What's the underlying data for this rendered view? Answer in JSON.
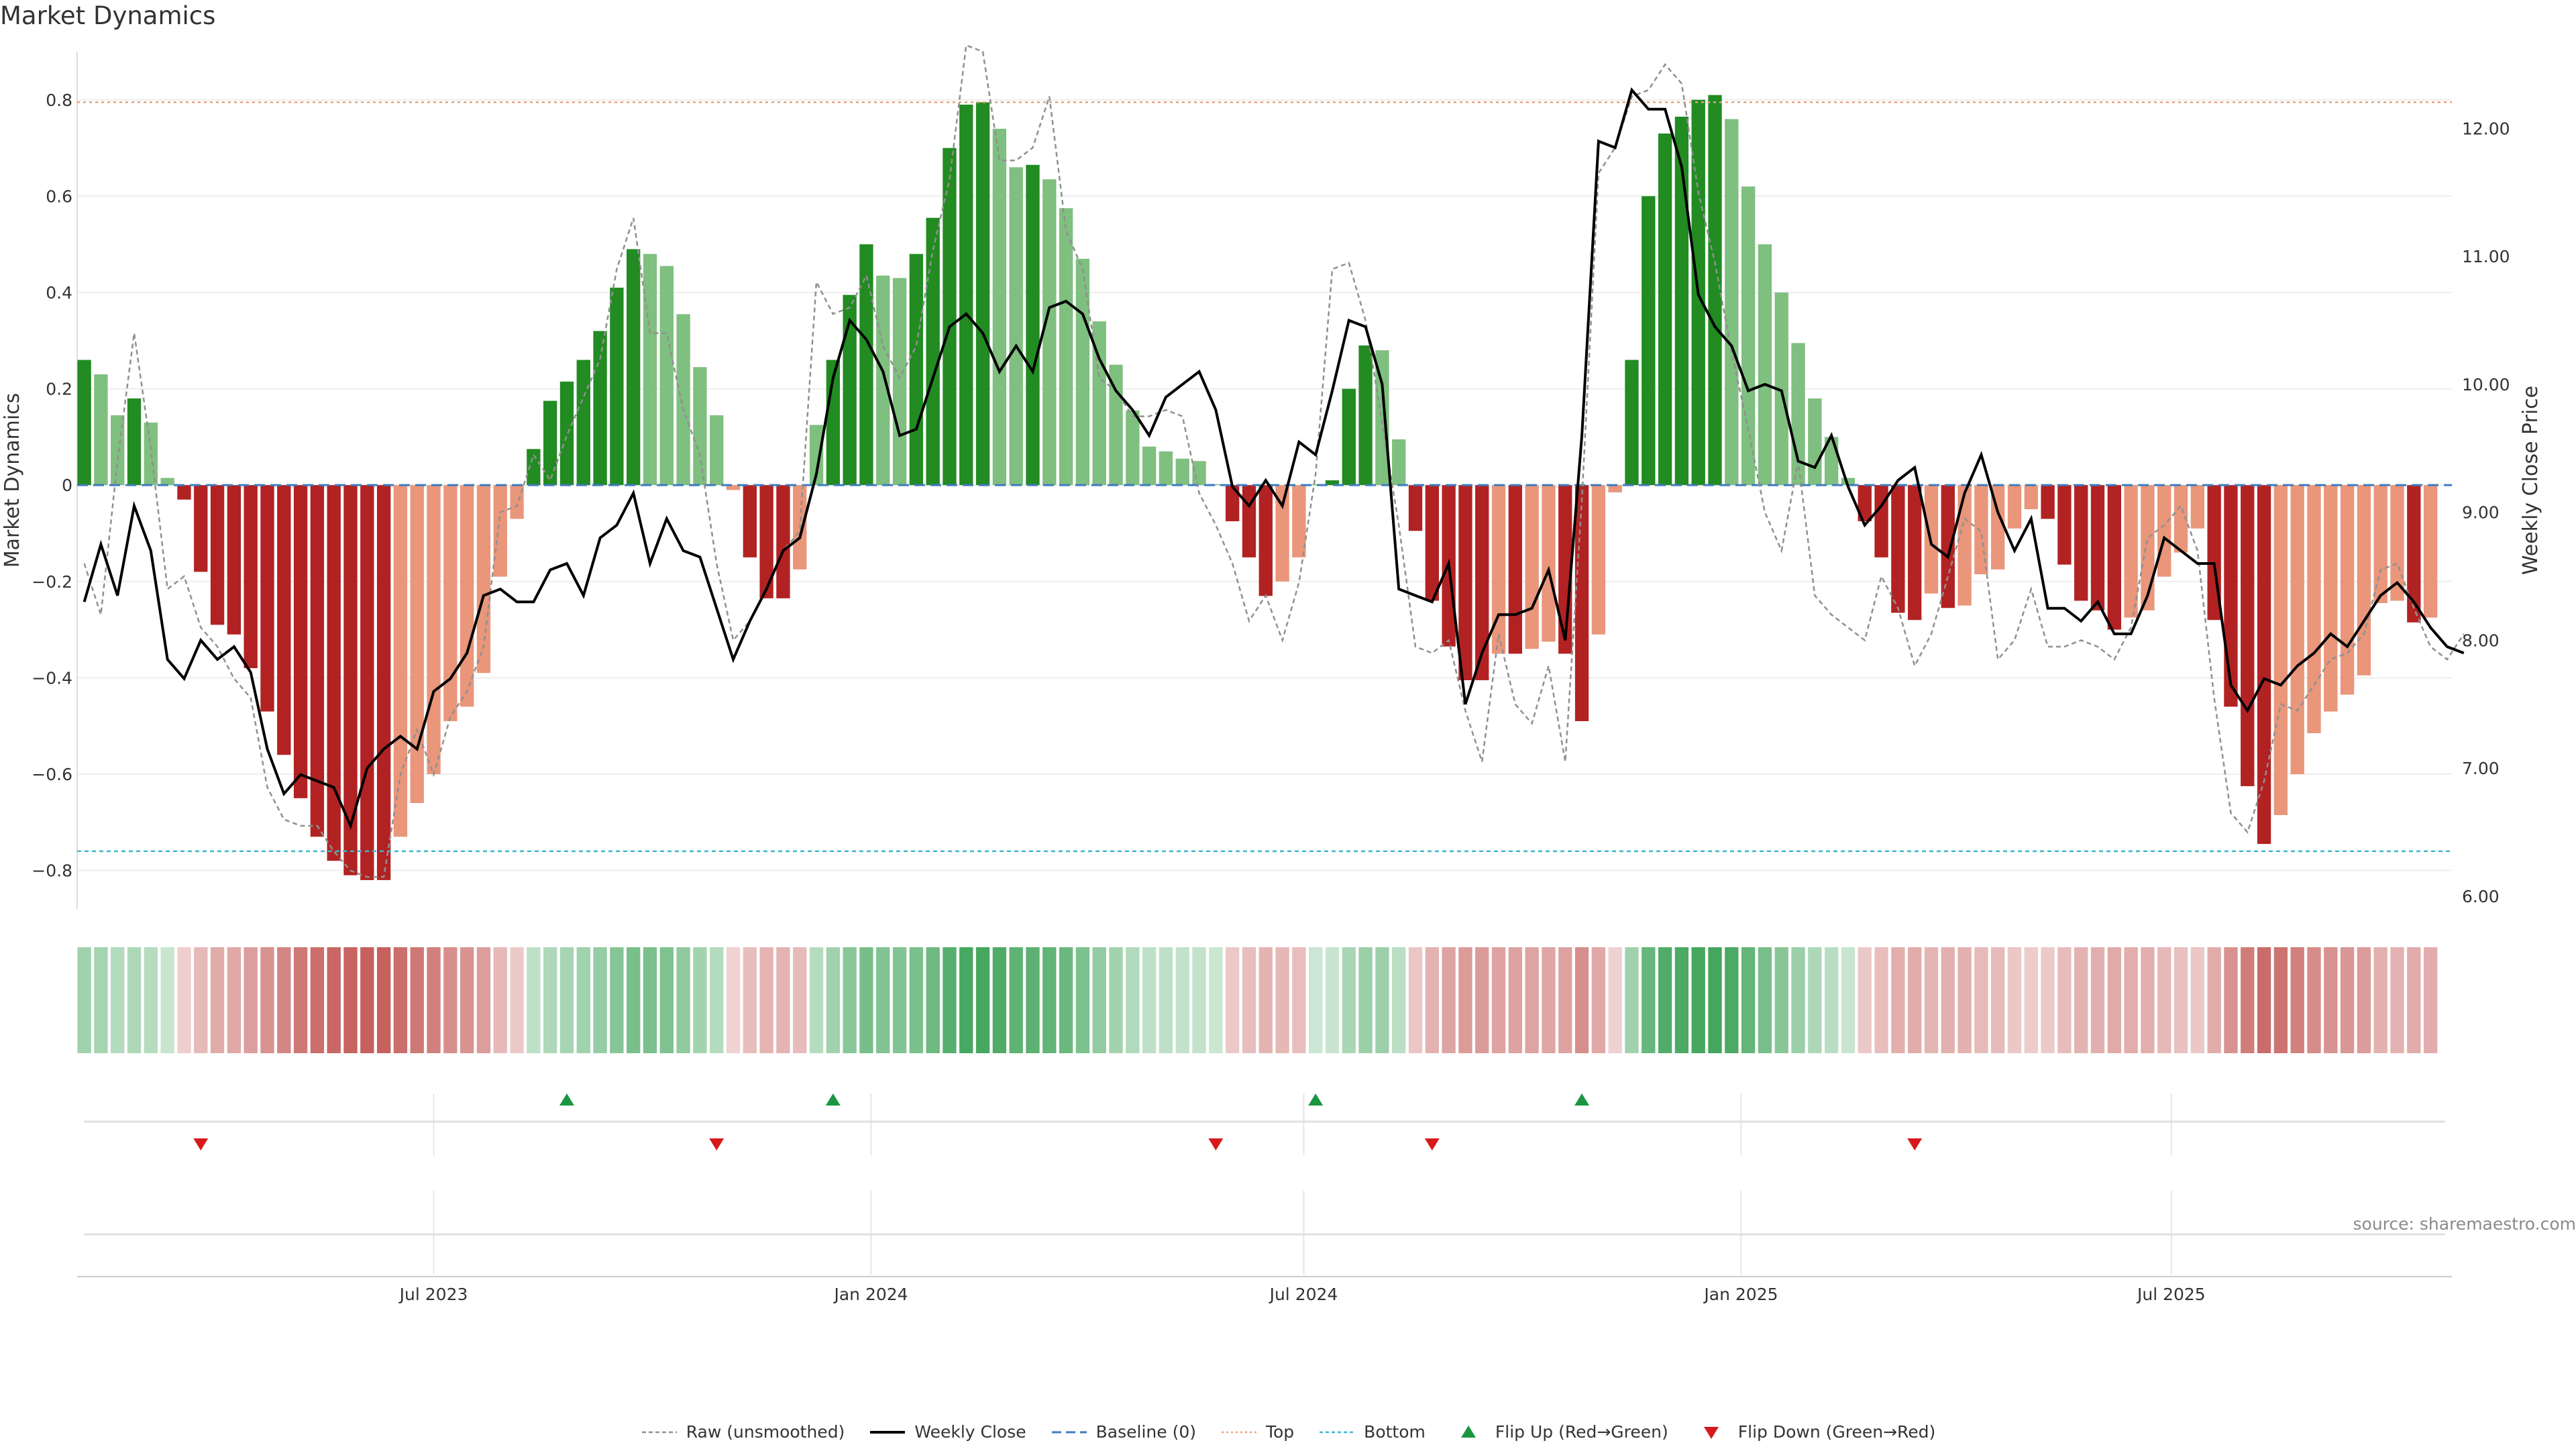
{
  "title": "Market Dynamics",
  "source": "source: sharemaestro.com",
  "chart_data": {
    "type": "bar",
    "title": "Market Dynamics",
    "ylabel": "Market Dynamics",
    "y2label": "Weekly Close Price",
    "ylim": [
      -0.88,
      0.9
    ],
    "y2lim": [
      5.9,
      12.6
    ],
    "yticks": [
      -0.8,
      -0.6,
      -0.4,
      -0.2,
      0,
      0.2,
      0.4,
      0.6,
      0.8
    ],
    "yticklabels": [
      "−0.8",
      "−0.6",
      "−0.4",
      "−0.2",
      "0",
      "0.2",
      "0.4",
      "0.6",
      "0.8"
    ],
    "y2ticks": [
      6,
      7,
      8,
      9,
      10,
      11,
      12
    ],
    "y2ticklabels": [
      "6.00",
      "7.00",
      "8.00",
      "9.00",
      "10.00",
      "11.00",
      "12.00"
    ],
    "xlim": [
      "2023-02-01",
      "2025-10-27"
    ],
    "xticks": [
      "2023-07-01",
      "2024-01-01",
      "2024-07-01",
      "2025-01-01",
      "2025-07-01"
    ],
    "xticklabels": [
      "Jul 2023",
      "Jan 2024",
      "Jul 2024",
      "Jan 2025",
      "Jul 2025"
    ],
    "start_date": "2023-02-04",
    "top_level": 0.795,
    "bottom_level": -0.76,
    "baseline": 0,
    "bars": [
      0.26,
      0.23,
      0.145,
      0.18,
      0.13,
      0.015,
      -0.03,
      -0.18,
      -0.29,
      -0.31,
      -0.38,
      -0.47,
      -0.56,
      -0.65,
      -0.73,
      -0.78,
      -0.81,
      -0.82,
      -0.82,
      -0.73,
      -0.66,
      -0.6,
      -0.49,
      -0.46,
      -0.39,
      -0.19,
      -0.07,
      0.075,
      0.175,
      0.215,
      0.26,
      0.32,
      0.41,
      0.49,
      0.48,
      0.455,
      0.355,
      0.245,
      0.145,
      -0.01,
      -0.15,
      -0.235,
      -0.235,
      -0.175,
      0.125,
      0.26,
      0.395,
      0.5,
      0.435,
      0.43,
      0.48,
      0.555,
      0.7,
      0.79,
      0.795,
      0.74,
      0.66,
      0.665,
      0.635,
      0.575,
      0.47,
      0.34,
      0.25,
      0.155,
      0.08,
      0.07,
      0.055,
      0.05,
      0.002,
      -0.075,
      -0.15,
      -0.23,
      -0.2,
      -0.15,
      0.002,
      0.01,
      0.2,
      0.29,
      0.28,
      0.095,
      -0.095,
      -0.24,
      -0.335,
      -0.405,
      -0.405,
      -0.35,
      -0.35,
      -0.34,
      -0.325,
      -0.35,
      -0.49,
      -0.31,
      -0.015,
      0.26,
      0.6,
      0.73,
      0.765,
      0.8,
      0.81,
      0.76,
      0.62,
      0.5,
      0.4,
      0.295,
      0.18,
      0.1,
      0.015,
      -0.075,
      -0.15,
      -0.265,
      -0.28,
      -0.225,
      -0.255,
      -0.25,
      -0.185,
      -0.175,
      -0.09,
      -0.05,
      -0.07,
      -0.165,
      -0.24,
      -0.26,
      -0.3,
      -0.275,
      -0.26,
      -0.19,
      -0.14,
      -0.09,
      -0.28,
      -0.46,
      -0.625,
      -0.745,
      -0.685,
      -0.6,
      -0.515,
      -0.47,
      -0.435,
      -0.395,
      -0.245,
      -0.24,
      -0.285,
      -0.275
    ],
    "weekly_close": [
      8.3,
      8.75,
      8.35,
      9.05,
      8.7,
      7.85,
      7.7,
      8.0,
      7.85,
      7.95,
      7.75,
      7.15,
      6.8,
      6.95,
      6.9,
      6.85,
      6.55,
      7.0,
      7.15,
      7.25,
      7.15,
      7.6,
      7.7,
      7.9,
      8.35,
      8.4,
      8.3,
      8.3,
      8.55,
      8.6,
      8.35,
      8.8,
      8.9,
      9.15,
      8.6,
      8.95,
      8.7,
      8.65,
      8.25,
      7.85,
      8.15,
      8.4,
      8.7,
      8.8,
      9.3,
      10.05,
      10.5,
      10.35,
      10.1,
      9.6,
      9.65,
      10.05,
      10.45,
      10.55,
      10.4,
      10.1,
      10.3,
      10.1,
      10.6,
      10.65,
      10.55,
      10.2,
      9.95,
      9.8,
      9.6,
      9.9,
      10.0,
      10.1,
      9.8,
      9.2,
      9.05,
      9.25,
      9.05,
      9.55,
      9.45,
      9.95,
      10.5,
      10.45,
      10.0,
      8.4,
      8.35,
      8.3,
      8.6,
      7.5,
      7.9,
      8.2,
      8.2,
      8.25,
      8.55,
      8.0,
      9.6,
      11.9,
      11.85,
      12.3,
      12.15,
      12.15,
      11.7,
      10.7,
      10.45,
      10.3,
      9.95,
      10.0,
      9.95,
      9.4,
      9.35,
      9.6,
      9.2,
      8.9,
      9.05,
      9.25,
      9.35,
      8.75,
      8.65,
      9.15,
      9.45,
      9.0,
      8.7,
      8.95,
      8.25,
      8.25,
      8.15,
      8.3,
      8.05,
      8.05,
      8.35,
      8.8,
      8.7,
      8.6,
      8.6,
      7.65,
      7.45,
      7.7,
      7.65,
      7.8,
      7.9,
      8.05,
      7.95,
      8.15,
      8.35,
      8.45,
      8.3,
      8.1,
      7.95,
      7.9
    ],
    "raw": [
      8.6,
      8.2,
      9.4,
      10.4,
      9.5,
      8.4,
      8.5,
      8.1,
      7.95,
      7.7,
      7.55,
      6.85,
      6.6,
      6.55,
      6.55,
      6.35,
      6.2,
      6.15,
      6.15,
      6.95,
      7.3,
      6.95,
      7.4,
      7.6,
      7.95,
      9.0,
      9.05,
      9.45,
      9.25,
      9.6,
      9.9,
      10.2,
      10.9,
      11.3,
      10.4,
      10.4,
      9.8,
      9.45,
      8.6,
      8.0,
      8.15,
      8.4,
      8.7,
      8.85,
      10.8,
      10.55,
      10.6,
      10.85,
      10.3,
      10.05,
      10.3,
      11.05,
      11.6,
      12.65,
      12.6,
      11.75,
      11.75,
      11.85,
      12.25,
      11.2,
      10.9,
      10.05,
      9.95,
      9.75,
      9.75,
      9.8,
      9.75,
      9.15,
      8.9,
      8.6,
      8.15,
      8.35,
      8.0,
      8.45,
      9.3,
      10.9,
      10.95,
      10.5,
      9.7,
      8.9,
      7.95,
      7.9,
      8.0,
      7.45,
      7.05,
      8.05,
      7.5,
      7.35,
      7.8,
      7.05,
      9.1,
      11.65,
      11.85,
      12.25,
      12.3,
      12.5,
      12.35,
      11.5,
      10.95,
      10.25,
      9.65,
      9.0,
      8.7,
      9.4,
      8.35,
      8.2,
      8.1,
      8.0,
      8.5,
      8.25,
      7.8,
      8.05,
      8.5,
      8.95,
      8.85,
      7.85,
      8.0,
      8.4,
      7.95,
      7.95,
      8.0,
      7.95,
      7.85,
      8.1,
      8.8,
      8.9,
      9.05,
      8.7,
      7.55,
      6.65,
      6.5,
      6.9,
      7.5,
      7.45,
      7.65,
      7.85,
      7.9,
      8.05,
      8.55,
      8.6,
      8.25,
      7.95,
      7.85,
      8.05
    ],
    "strip_intensity_scale": [
      0,
      1
    ],
    "flip_up_dates": [
      "2023-08-26",
      "2023-12-16",
      "2024-07-06",
      "2024-10-26"
    ],
    "flip_down_dates": [
      "2023-03-25",
      "2023-10-28",
      "2024-05-25",
      "2024-08-24",
      "2025-03-15"
    ],
    "legend": [
      {
        "label": "Raw (unsmoothed)",
        "kind": "raw",
        "color": "#909090"
      },
      {
        "label": "Weekly Close",
        "kind": "close",
        "color": "#000000"
      },
      {
        "label": "Baseline (0)",
        "kind": "baseline",
        "color": "#3f7bbf"
      },
      {
        "label": "Top",
        "kind": "top",
        "color": "#e8a27a"
      },
      {
        "label": "Bottom",
        "kind": "bottom",
        "color": "#3fb6cf"
      },
      {
        "label": "Flip Up (Red→Green)",
        "kind": "flipup",
        "color": "#1a9641"
      },
      {
        "label": "Flip Down (Green→Red)",
        "kind": "flipdown",
        "color": "#d7191c"
      }
    ],
    "colors": {
      "pos_strong": "#228b22",
      "pos_weak": "#7fbf7f",
      "neg_strong": "#b22222",
      "neg_weak": "#e9967a",
      "strip_pos": "#2e9b4a",
      "strip_neg": "#c0504d"
    },
    "grid": true,
    "legend_position": "bottom-center"
  }
}
